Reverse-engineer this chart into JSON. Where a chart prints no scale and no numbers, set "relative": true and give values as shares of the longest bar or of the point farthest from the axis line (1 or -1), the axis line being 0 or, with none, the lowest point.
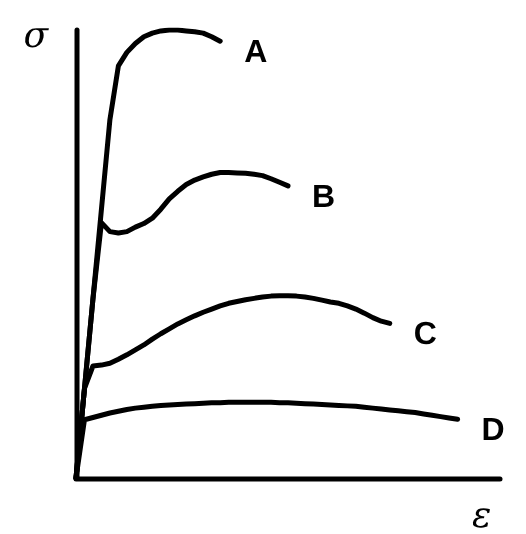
{
  "chart_data": {
    "type": "line",
    "relative": true,
    "xlabel": "ε",
    "ylabel": "σ",
    "grid": false,
    "legend": false,
    "marker": "none",
    "line_style": "solid",
    "categories": [
      null,
      null,
      null,
      null,
      null,
      null,
      null,
      null,
      null,
      null,
      null,
      null,
      null,
      null,
      null,
      null,
      null,
      null,
      null,
      null,
      null,
      null,
      null,
      null,
      null,
      null,
      null,
      null,
      null,
      null,
      null,
      null,
      null,
      null,
      null,
      null,
      null,
      null,
      null,
      null,
      null,
      null,
      null,
      null,
      null,
      null,
      null,
      null,
      null,
      null,
      null
    ],
    "series": [
      {
        "name": "A",
        "color": "#000000",
        "values": [
          0,
          0.2,
          0.4,
          0.6,
          0.8,
          0.92,
          0.95,
          0.97,
          0.985,
          0.993,
          0.998,
          1,
          1,
          0.998,
          0.996,
          0.993,
          0.985,
          0.975,
          null,
          null,
          null,
          null,
          null,
          null,
          null,
          null,
          null,
          null,
          null,
          null,
          null,
          null,
          null,
          null,
          null,
          null,
          null,
          null,
          null,
          null,
          null,
          null,
          null,
          null,
          null,
          null,
          null,
          null,
          null,
          null,
          null
        ]
      },
      {
        "name": "B",
        "color": "#000000",
        "values": [
          0,
          0.2,
          0.4,
          0.57,
          0.55,
          0.547,
          0.55,
          0.56,
          0.568,
          0.58,
          0.6,
          0.623,
          0.64,
          0.655,
          0.665,
          0.672,
          0.678,
          0.682,
          0.682,
          0.681,
          0.68,
          0.678,
          0.675,
          0.668,
          0.66,
          0.652,
          null,
          null,
          null,
          null,
          null,
          null,
          null,
          null,
          null,
          null,
          null,
          null,
          null,
          null,
          null,
          null,
          null,
          null,
          null,
          null,
          null,
          null,
          null,
          null,
          null
        ]
      },
      {
        "name": "C",
        "color": "#000000",
        "values": [
          0,
          0.2,
          0.25,
          0.252,
          0.256,
          0.265,
          0.275,
          0.286,
          0.297,
          0.31,
          0.322,
          0.333,
          0.344,
          0.353,
          0.362,
          0.37,
          0.377,
          0.384,
          0.39,
          0.394,
          0.398,
          0.401,
          0.404,
          0.406,
          0.407,
          0.407,
          0.406,
          0.404,
          0.401,
          0.397,
          0.393,
          0.39,
          0.384,
          0.377,
          0.368,
          0.358,
          0.35,
          0.345,
          null,
          null,
          null,
          null,
          null,
          null,
          null,
          null,
          null,
          null,
          null,
          null,
          null
        ]
      },
      {
        "name": "D",
        "color": "#000000",
        "values": [
          0,
          0.13,
          0.135,
          0.14,
          0.145,
          0.149,
          0.153,
          0.156,
          0.158,
          0.16,
          0.162,
          0.163,
          0.164,
          0.165,
          0.166,
          0.167,
          0.168,
          0.168,
          0.169,
          0.169,
          0.169,
          0.169,
          0.169,
          0.169,
          0.168,
          0.168,
          0.167,
          0.166,
          0.165,
          0.164,
          0.163,
          0.162,
          0.161,
          0.16,
          0.158,
          0.156,
          0.154,
          0.152,
          0.15,
          0.148,
          0.146,
          0.143,
          0.14,
          0.137,
          0.134,
          0.131,
          null,
          null,
          null,
          null,
          null
        ]
      }
    ]
  }
}
